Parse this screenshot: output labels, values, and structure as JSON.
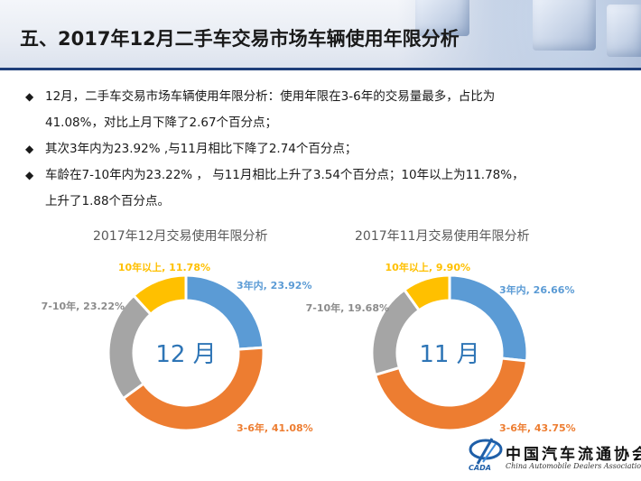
{
  "header": {
    "title": "五、2017年12月二手车交易市场车辆使用年限分析"
  },
  "bullets": [
    {
      "line1": "12月，二手车交易市场车辆使用年限分析：使用年限在3-6年的交易量最多，占比为",
      "line2": "41.08%，对比上月下降了2.67个百分点；"
    },
    {
      "line1": "其次3年内为23.92% ,与11月相比下降了2.74个百分点；",
      "line2": ""
    },
    {
      "line1": "车龄在7-10年内为23.22% ， 与11月相比上升了3.54个百分点；10年以上为11.78%，",
      "line2": "上升了1.88个百分点。"
    }
  ],
  "bullet_marker": "◆",
  "colors": {
    "within_3": "#5b9bd5",
    "y3_6": "#ed7d31",
    "y7_10": "#a5a5a5",
    "over_10": "#ffc000",
    "title_rule": "#1f3f7a"
  },
  "chart_data": [
    {
      "type": "pie",
      "style": "donut",
      "title": "2017年12月交易使用年限分析",
      "center_label": "12 月",
      "slices": [
        {
          "label": "3年内",
          "value": 23.92,
          "text": "3年内, 23.92%",
          "color": "#5b9bd5"
        },
        {
          "label": "3-6年",
          "value": 41.08,
          "text": "3-6年, 41.08%",
          "color": "#ed7d31"
        },
        {
          "label": "7-10年",
          "value": 23.22,
          "text": "7-10年, 23.22%",
          "color": "#a5a5a5"
        },
        {
          "label": "10年以上",
          "value": 11.78,
          "text": "10年以上, 11.78%",
          "color": "#ffc000"
        }
      ]
    },
    {
      "type": "pie",
      "style": "donut",
      "title": "2017年11月交易使用年限分析",
      "center_label": "11 月",
      "slices": [
        {
          "label": "3年内",
          "value": 26.66,
          "text": "3年内, 26.66%",
          "color": "#5b9bd5"
        },
        {
          "label": "3-6年",
          "value": 43.75,
          "text": "3-6年, 43.75%",
          "color": "#ed7d31"
        },
        {
          "label": "7-10年",
          "value": 19.68,
          "text": "7-10年, 19.68%",
          "color": "#a5a5a5"
        },
        {
          "label": "10年以上",
          "value": 9.9,
          "text": "10年以上, 9.90%",
          "color": "#ffc000"
        }
      ]
    }
  ],
  "logo": {
    "name_cn": "中国汽车流通协会",
    "name_en": "China Automobile Dealers Association",
    "abbr": "CADA"
  }
}
